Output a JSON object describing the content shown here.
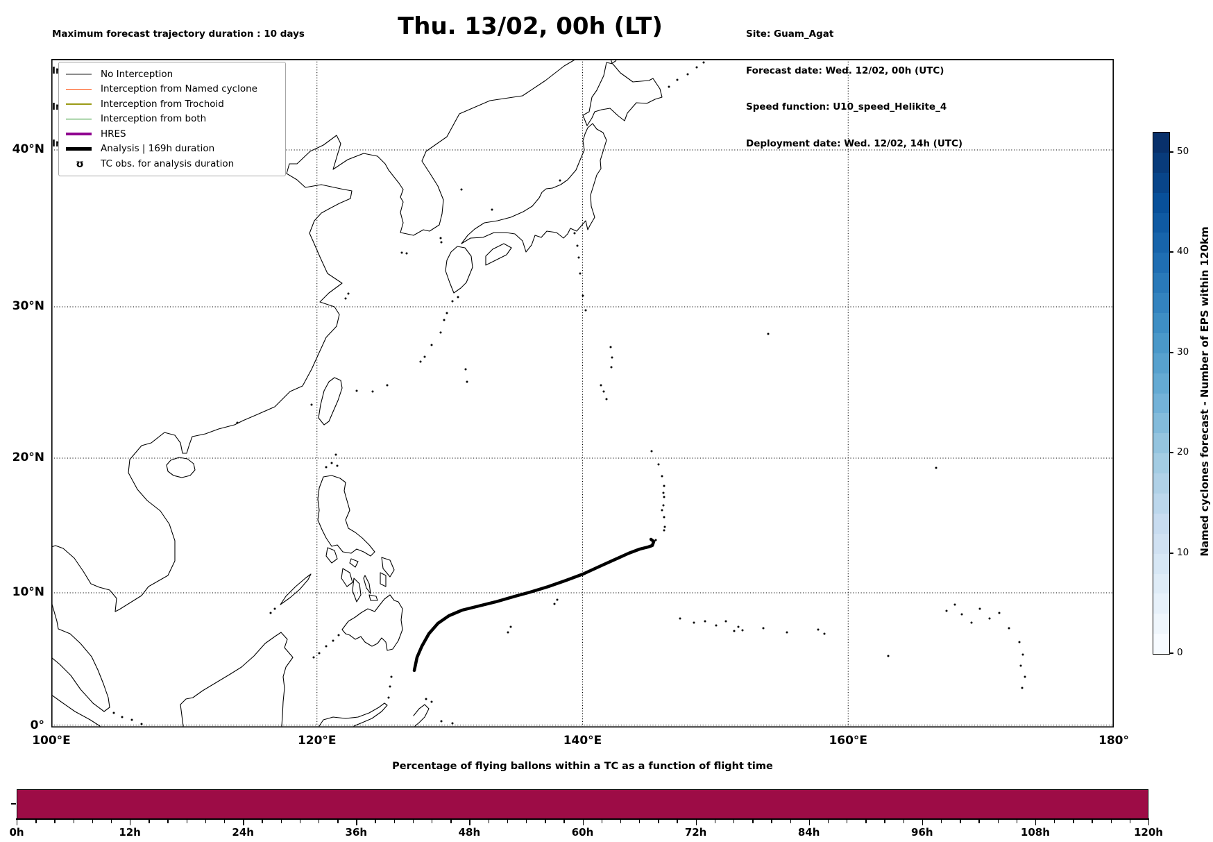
{
  "header": {
    "left_lines": [
      "Maximum forecast trajectory duration : 10 days",
      "Intercept distance: 300km",
      "Intercept RW2 (EPS):  30km/h2",
      "Intercept RW2 (HRES): 30km/h2"
    ],
    "title": "Thu. 13/02, 00h (LT)",
    "right_lines": [
      "Site: Guam_Agat",
      "Forecast date: Wed. 12/02, 00h (UTC)",
      "Speed function: U10_speed_Helikite_4",
      "Deployment date: Wed. 12/02, 14h (UTC)"
    ]
  },
  "map_panel": {
    "yticks": [
      {
        "label": "40°N",
        "lat": 40
      },
      {
        "label": "30°N",
        "lat": 30
      },
      {
        "label": "20°N",
        "lat": 20
      },
      {
        "label": "10°N",
        "lat": 10
      },
      {
        "label": "0°",
        "lat": 0
      }
    ],
    "xticks": [
      {
        "label": "100°E",
        "lon": 100
      },
      {
        "label": "120°E",
        "lon": 120
      },
      {
        "label": "140°E",
        "lon": 140
      },
      {
        "label": "160°E",
        "lon": 160
      },
      {
        "label": "180°",
        "lon": 180
      }
    ],
    "grid_lons": [
      120,
      140,
      160
    ],
    "grid_lats": [
      40,
      30,
      20,
      10,
      0
    ],
    "legend_items": [
      {
        "type": "line",
        "color": "#8c8c8c",
        "width": 1.5,
        "label": "No Interception"
      },
      {
        "type": "line",
        "color": "#ff4500",
        "width": 1.5,
        "label": "Interception from Named cyclone"
      },
      {
        "type": "line",
        "color": "#9a9a16",
        "width": 1.5,
        "label": "Interception from Trochoid"
      },
      {
        "type": "line",
        "color": "#178c17",
        "width": 1.5,
        "label": "Interception from both"
      },
      {
        "type": "line",
        "color": "#8f008f",
        "width": 4.5,
        "label": "HRES"
      },
      {
        "type": "line",
        "color": "#000000",
        "width": 4.5,
        "label": "Analysis | 169h duration"
      },
      {
        "type": "marker",
        "glyph": "ʊ",
        "label": "TC obs. for analysis duration"
      }
    ]
  },
  "colorbar": {
    "label": "Named cyclones forecast - Number of EPS within 120km",
    "ticks": [
      0,
      10,
      20,
      30,
      40,
      50
    ],
    "vmin": 0,
    "vmax": 52,
    "steps": 26,
    "colormap_anchors": [
      "#f7fbff",
      "#deebf7",
      "#c6dbef",
      "#9ecae1",
      "#6baed6",
      "#4292c6",
      "#2171b5",
      "#08519c",
      "#08306b"
    ]
  },
  "bottom_chart": {
    "title": "Percentage of flying ballons within a TC as a function of flight time",
    "xtick_labels": [
      "0h",
      "12h",
      "24h",
      "36h",
      "48h",
      "60h",
      "72h",
      "84h",
      "96h",
      "108h",
      "120h"
    ],
    "hours_max": 120,
    "major_tick_hours": 12,
    "minor_tick_hours": 2,
    "bar_color": "#9d0c46",
    "bar_percent": 100
  },
  "chart_data": [
    {
      "type": "line",
      "name": "Analysis | 169h duration — TC track",
      "x_axis": "longitude °E",
      "y_axis": "latitude °N",
      "color": "#000000",
      "line_width": 4.5,
      "points": [
        [
          127.33,
          4.17
        ],
        [
          127.54,
          5.16
        ],
        [
          127.9,
          5.99
        ],
        [
          128.43,
          6.93
        ],
        [
          129.11,
          7.71
        ],
        [
          129.94,
          8.28
        ],
        [
          130.93,
          8.7
        ],
        [
          131.98,
          8.96
        ],
        [
          133.44,
          9.32
        ],
        [
          134.91,
          9.74
        ],
        [
          136.06,
          10.05
        ],
        [
          137.41,
          10.46
        ],
        [
          138.77,
          10.93
        ],
        [
          140.03,
          11.39
        ],
        [
          141.28,
          11.96
        ],
        [
          142.43,
          12.47
        ],
        [
          143.48,
          12.94
        ],
        [
          144.31,
          13.25
        ],
        [
          144.94,
          13.4
        ],
        [
          145.25,
          13.51
        ],
        [
          145.36,
          13.81
        ],
        [
          145.15,
          13.97
        ]
      ]
    },
    {
      "type": "bar",
      "name": "Percentage of flying ballons within a TC as a function of flight time",
      "x_range_hours": [
        0,
        120
      ],
      "value_percent": 100,
      "note": "single full-width bar at 100% for the whole 0-120h flight time",
      "color": "#9d0c46"
    },
    {
      "type": "heatmap-colorbar",
      "name": "Named cyclones forecast - Number of EPS within 120km",
      "range": [
        0,
        52
      ],
      "tick_values": [
        0,
        10,
        20,
        30,
        40,
        50
      ],
      "palette": "Blues"
    }
  ]
}
